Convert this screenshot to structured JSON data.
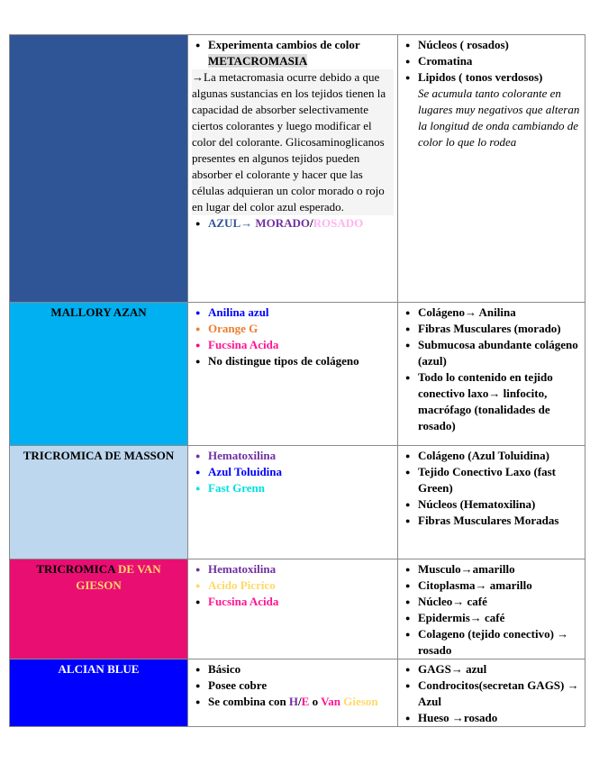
{
  "colors": {
    "row1": "#2f5597",
    "mallory": "#00b0f0",
    "masson": "#bdd7ee",
    "vangieson": "#e90f72",
    "alcian": "#0000ff"
  },
  "rows": [
    {
      "label": [],
      "bg": "#2f5597",
      "col2": [
        {
          "bullet": "#000",
          "parts": [
            {
              "t": "Experimenta cambios de color "
            },
            {
              "t": "METACROMASIA",
              "hl": true
            }
          ]
        },
        {
          "para": "→La metacromasia ocurre debido a que algunas sustancias en los tejidos tienen la capacidad de absorber selectivamente ciertos colorantes y luego modificar el color del colorante. Glicosaminoglicanos presentes en algunos tejidos pueden absorber el colorante y hacer que las células adquieran un color morado o rojo en lugar del color azul esperado."
        },
        {
          "bullet": "#000",
          "parts": [
            {
              "t": "AZUL→ ",
              "c": "#2f5597"
            },
            {
              "t": "MORADO",
              "c": "#7030a0"
            },
            {
              "t": "/"
            },
            {
              "t": "ROSADO",
              "c": "#ffb3f0"
            }
          ]
        }
      ],
      "col3": [
        {
          "bullet": "#000",
          "parts": [
            {
              "t": "Núcleos ( rosados)"
            }
          ]
        },
        {
          "bullet": "#000",
          "parts": [
            {
              "t": "Cromatina"
            }
          ]
        },
        {
          "bullet": "#000",
          "parts": [
            {
              "t": "Lipidos ( tonos verdosos)"
            }
          ]
        },
        {
          "italic": "Se acumula tanto colorante en lugares muy negativos que alteran la longitud de onda cambiando de color lo que lo rodea"
        }
      ]
    },
    {
      "label": [
        {
          "t": "MALLORY AZAN",
          "c": "#000"
        }
      ],
      "bg": "#00b0f0",
      "col2": [
        {
          "bullet": "#0000ff",
          "parts": [
            {
              "t": "Anilina azul",
              "c": "#0000ff"
            }
          ]
        },
        {
          "bullet": "#ed7d31",
          "parts": [
            {
              "t": "Orange G",
              "c": "#ed7d31"
            }
          ]
        },
        {
          "bullet": "#ff0080",
          "parts": [
            {
              "t": "Fucsina Acida",
              "c": "#ff1493"
            }
          ]
        },
        {
          "bullet": "#000",
          "parts": [
            {
              "t": "No distingue tipos de colágeno"
            }
          ]
        }
      ],
      "col3": [
        {
          "bullet": "#000",
          "parts": [
            {
              "t": "Colágeno→ Anilina"
            }
          ]
        },
        {
          "bullet": "#000",
          "parts": [
            {
              "t": "Fibras Musculares (morado)"
            }
          ]
        },
        {
          "bullet": "#000",
          "parts": [
            {
              "t": "Submucosa abundante colágeno (azul)"
            }
          ]
        },
        {
          "bullet": "#000",
          "parts": [
            {
              "t": "Todo lo contenido en tejido conectivo laxo→ linfocito, macrófago (tonalidades de rosado)"
            }
          ]
        }
      ]
    },
    {
      "label": [
        {
          "t": "TRICROMICA DE MASSON",
          "c": "#000"
        }
      ],
      "bg": "#bdd7ee",
      "col2": [
        {
          "bullet": "#7030a0",
          "parts": [
            {
              "t": "Hematoxilina",
              "c": "#7030a0"
            }
          ]
        },
        {
          "bullet": "#0000ff",
          "parts": [
            {
              "t": "Azul Toluidina",
              "c": "#0000ff"
            }
          ]
        },
        {
          "bullet": "#00e5e5",
          "parts": [
            {
              "t": "Fast Grenn",
              "c": "#00e0e0"
            }
          ]
        }
      ],
      "col3": [
        {
          "bullet": "#000",
          "parts": [
            {
              "t": "Colágeno (Azul Toluidina)"
            }
          ]
        },
        {
          "bullet": "#000",
          "parts": [
            {
              "t": "Tejido Conectivo Laxo (fast Green)"
            }
          ]
        },
        {
          "bullet": "#000",
          "parts": [
            {
              "t": "Núcleos (Hematoxilina)"
            }
          ]
        },
        {
          "bullet": "#000",
          "parts": [
            {
              "t": "Fibras Musculares Moradas"
            }
          ]
        }
      ]
    },
    {
      "label": [
        {
          "t": "TRICROMICA ",
          "c": "#000"
        },
        {
          "t": "DE VAN GIESON",
          "c": "#ffd966"
        }
      ],
      "bg": "#e90f72",
      "col2": [
        {
          "bullet": "#7030a0",
          "parts": [
            {
              "t": "Hematoxilina",
              "c": "#7030a0"
            }
          ]
        },
        {
          "bullet": "#ffd966",
          "parts": [
            {
              "t": "Acido Picrico",
              "c": "#ffd966"
            }
          ]
        },
        {
          "bullet": "#000",
          "parts": [
            {
              "t": "Fucsina Acida",
              "c": "#ff1493"
            }
          ]
        }
      ],
      "col3": [
        {
          "bullet": "#000",
          "parts": [
            {
              "t": "Musculo→amarillo"
            }
          ]
        },
        {
          "bullet": "#000",
          "parts": [
            {
              "t": "Citoplasma→ amarillo"
            }
          ]
        },
        {
          "bullet": "#000",
          "parts": [
            {
              "t": "Núcleo→ café"
            }
          ]
        },
        {
          "bullet": "#000",
          "parts": [
            {
              "t": "Epidermis→ café"
            }
          ]
        },
        {
          "bullet": "#000",
          "parts": [
            {
              "t": "Colageno (tejido conectivo) → rosado"
            }
          ]
        }
      ]
    },
    {
      "label": [
        {
          "t": "ALCIAN BLUE",
          "c": "#fff"
        }
      ],
      "bg": "#0000ff",
      "col2": [
        {
          "bullet": "#000",
          "parts": [
            {
              "t": "Básico"
            }
          ]
        },
        {
          "bullet": "#000",
          "parts": [
            {
              "t": "Posee cobre"
            }
          ]
        },
        {
          "bullet": "#000",
          "parts": [
            {
              "t": "Se combina con "
            },
            {
              "t": "H",
              "c": "#7030a0"
            },
            {
              "t": "/"
            },
            {
              "t": "E",
              "c": "#ff1493"
            },
            {
              "t": " o "
            },
            {
              "t": "Van ",
              "c": "#ff1493"
            },
            {
              "t": "Gieson",
              "c": "#ffd966"
            }
          ]
        }
      ],
      "col3": [
        {
          "bullet": "#000",
          "parts": [
            {
              "t": "GAGS→ azul"
            }
          ]
        },
        {
          "bullet": "#000",
          "parts": [
            {
              "t": "Condrocitos(secretan GAGS) → Azul"
            }
          ]
        },
        {
          "bullet": "#000",
          "parts": [
            {
              "t": "Hueso →rosado"
            }
          ]
        }
      ]
    }
  ]
}
